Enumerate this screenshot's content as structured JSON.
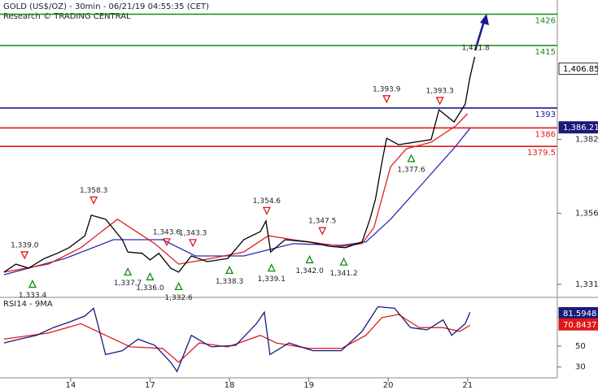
{
  "chart_data": [
    {
      "type": "line",
      "title": "GOLD (US$/OZ) - 30min - 06/21/19 04:55:35 (CET)",
      "subtitle": "Research © TRADING CENTRAL",
      "xlim": [
        -0.89,
        6.13
      ],
      "ylim": [
        1326.7,
        1431
      ],
      "yticks": [
        {
          "value": 1382,
          "label": "1,382"
        },
        {
          "value": 1356,
          "label": "1,356"
        },
        {
          "value": 1331,
          "label": "1,331"
        }
      ],
      "series": [
        {
          "color": "#000000",
          "x": [
            -0.84,
            -0.69,
            -0.53,
            -0.33,
            -0.17,
            -0.02,
            0.18,
            0.26,
            0.44,
            0.65,
            0.72,
            0.9,
            1.0,
            1.11,
            1.26,
            1.36,
            1.52,
            1.72,
            1.98,
            2.18,
            2.39,
            2.46,
            2.52,
            2.7,
            3.0,
            3.26,
            3.46,
            3.67,
            3.77,
            3.84,
            3.92,
            3.98,
            4.13,
            4.33,
            4.54,
            4.64,
            4.83,
            4.97,
            5.03,
            5.09
          ],
          "values": [
            1335.3,
            1338.1,
            1336.7,
            1340.1,
            1341.9,
            1343.9,
            1348.1,
            1355.3,
            1353.9,
            1346.7,
            1342.4,
            1341.9,
            1339.6,
            1341.9,
            1336.7,
            1335.3,
            1341.0,
            1339.0,
            1340.1,
            1346.7,
            1349.6,
            1353.3,
            1342.4,
            1346.7,
            1345.9,
            1344.4,
            1343.9,
            1345.9,
            1353.9,
            1361.0,
            1373.9,
            1382.4,
            1380.1,
            1381.0,
            1381.9,
            1392.4,
            1388.1,
            1394.4,
            1403.9,
            1411.0
          ]
        },
        {
          "color": "#e02020",
          "x": [
            -0.84,
            -0.28,
            0.13,
            0.59,
            1.06,
            1.36,
            1.77,
            2.18,
            2.49,
            2.8,
            3.41,
            3.67,
            3.82,
            4.03,
            4.23,
            4.54,
            4.85,
            5.0
          ],
          "values": [
            1335.3,
            1338.1,
            1343.9,
            1353.9,
            1345.3,
            1338.1,
            1340.1,
            1342.4,
            1348.1,
            1346.7,
            1344.4,
            1345.3,
            1351.0,
            1372.4,
            1378.7,
            1381.0,
            1386.7,
            1391.0
          ]
        },
        {
          "color": "#2a2ab0",
          "x": [
            -0.84,
            -0.07,
            0.54,
            1.16,
            1.57,
            2.18,
            2.8,
            3.41,
            3.72,
            4.03,
            4.44,
            4.85,
            5.03
          ],
          "values": [
            1334.4,
            1340.1,
            1346.7,
            1346.7,
            1341.0,
            1341.0,
            1345.3,
            1344.7,
            1345.9,
            1353.9,
            1366.7,
            1379.6,
            1385.9
          ]
        }
      ],
      "levels": [
        {
          "value": 1426,
          "color": "#138a13"
        },
        {
          "value": 1415,
          "color": "#138a13"
        },
        {
          "value": 1393,
          "color": "#1a1a9a"
        },
        {
          "value": 1386,
          "color": "#e01818"
        },
        {
          "value": 1379.5,
          "color": "#e01818"
        }
      ],
      "peaks": {
        "color": "#e01818",
        "x": [
          -0.58,
          0.29,
          1.21,
          1.54,
          2.47,
          3.17,
          3.98,
          4.65
        ],
        "values": [
          1339.0,
          1358.3,
          1343.6,
          1343.3,
          1354.6,
          1347.5,
          1393.9,
          1393.3
        ],
        "value_labels": [
          "1,339.0",
          "1,358.3",
          "1,343.6",
          "1,343.3",
          "1,354.6",
          "1,347.5",
          "1,393.9",
          "1,393.3"
        ]
      },
      "target": {
        "x": 5.1,
        "value": 1411.8,
        "value_label": "1,411.8"
      },
      "troughs": {
        "color": "#138a13",
        "x": [
          -0.48,
          0.72,
          1.0,
          1.36,
          2.0,
          2.53,
          3.01,
          3.44,
          4.29
        ],
        "values": [
          1333.4,
          1337.7,
          1336.0,
          1332.6,
          1338.3,
          1339.1,
          1342.0,
          1341.2,
          1377.6
        ],
        "value_labels": [
          "1,333.4",
          "1,337.7",
          "1,336.0",
          "1,332.6",
          "1,338.3",
          "1,339.1",
          "1,342.0",
          "1,341.2",
          "1,377.6"
        ]
      },
      "price_tags": [
        {
          "value": 1406.85,
          "label": "1,406.85",
          "color": "#ffffff"
        },
        {
          "value": 1386.21,
          "label": "1,386.21",
          "color": "#1a1a7a"
        }
      ]
    },
    {
      "type": "line",
      "title": "RSI14 - 9MA",
      "xlim": [
        -0.89,
        6.13
      ],
      "xticks": [
        {
          "value": 0,
          "label": "14"
        },
        {
          "value": 1,
          "label": "17"
        },
        {
          "value": 2,
          "label": "18"
        },
        {
          "value": 3,
          "label": "19"
        },
        {
          "value": 4,
          "label": "20"
        },
        {
          "value": 5,
          "label": "21"
        }
      ],
      "ylim": [
        19.6,
        95.2
      ],
      "yticks": [
        50,
        30
      ],
      "series": [
        {
          "color": "#1a1a7a",
          "x": [
            -0.84,
            -0.64,
            -0.43,
            -0.22,
            -0.02,
            0.18,
            0.29,
            0.44,
            0.65,
            0.85,
            1.06,
            1.26,
            1.34,
            1.52,
            1.77,
            2.08,
            2.34,
            2.44,
            2.51,
            2.75,
            3.05,
            3.41,
            3.67,
            3.87,
            4.08,
            4.28,
            4.49,
            4.69,
            4.8,
            4.97,
            5.03
          ],
          "values": [
            53.0,
            56.7,
            60.4,
            67.8,
            73.0,
            78.9,
            86.3,
            41.9,
            45.6,
            56.7,
            50.8,
            34.5,
            25.6,
            60.4,
            49.3,
            50.8,
            71.5,
            82.6,
            41.9,
            53.0,
            45.6,
            45.6,
            64.1,
            87.8,
            86.3,
            67.8,
            65.6,
            75.2,
            60.4,
            71.5,
            82.6
          ]
        },
        {
          "color": "#e02020",
          "x": [
            -0.84,
            -0.28,
            0.13,
            0.44,
            0.75,
            1.16,
            1.36,
            1.62,
            1.98,
            2.39,
            2.59,
            3.0,
            3.41,
            3.72,
            3.92,
            4.13,
            4.39,
            4.69,
            4.9,
            5.03
          ],
          "values": [
            56.7,
            62.6,
            71.5,
            60.4,
            49.3,
            47.8,
            34.5,
            53.0,
            49.3,
            60.4,
            53.0,
            47.8,
            47.8,
            60.4,
            77.4,
            80.4,
            67.8,
            67.8,
            64.1,
            70.0
          ]
        }
      ],
      "price_tags": [
        {
          "value": 81.5948,
          "label": "81.5948",
          "color": "#1a1a7a"
        },
        {
          "value": 70.8437,
          "label": "70.8437",
          "color": "#e01818"
        }
      ]
    }
  ]
}
